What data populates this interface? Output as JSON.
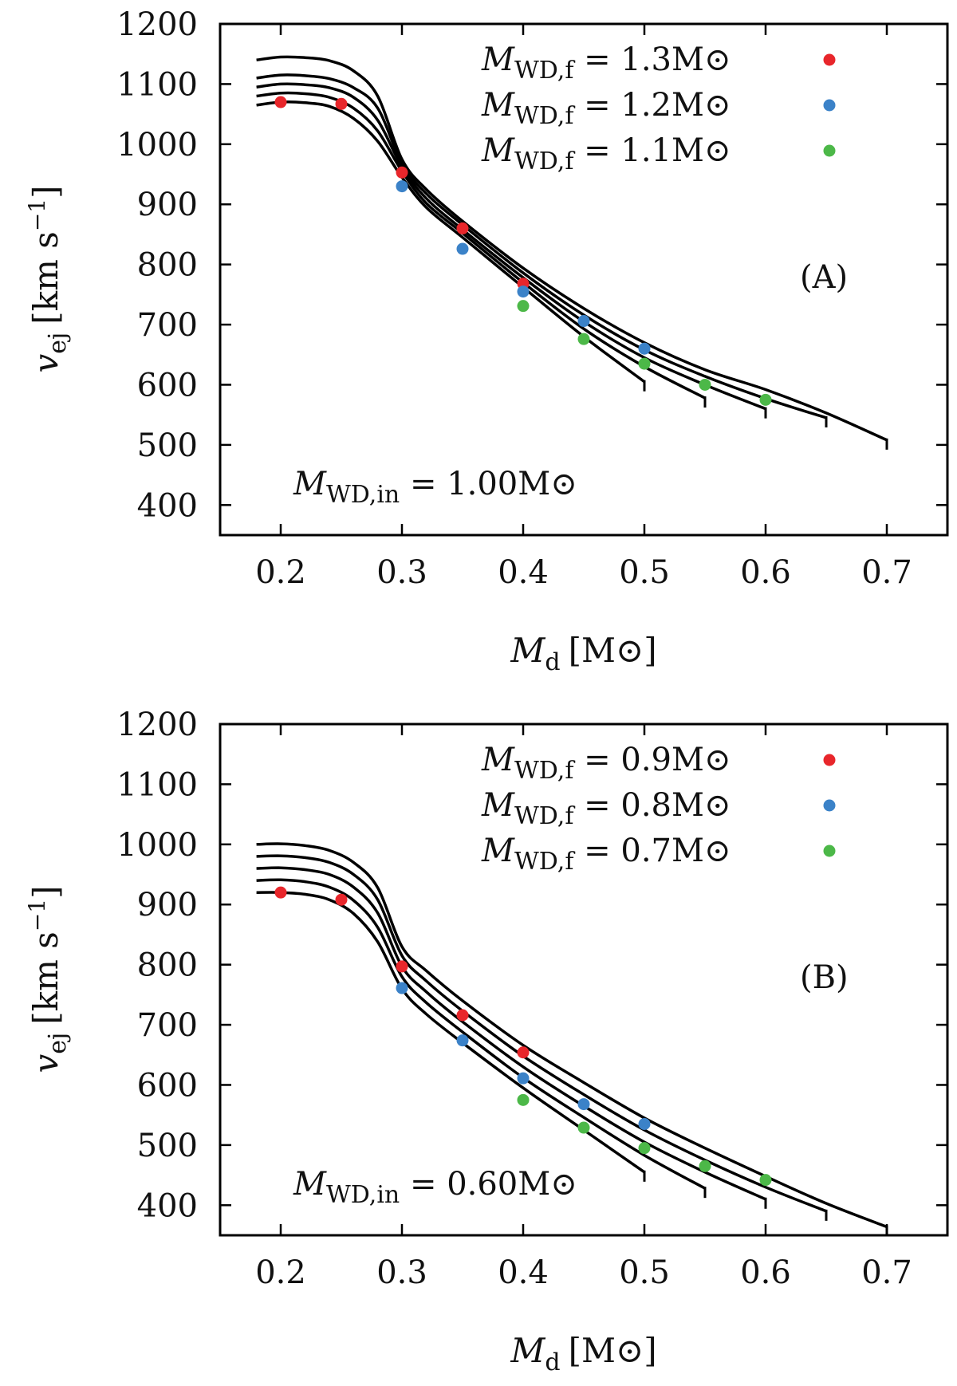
{
  "chart_data": [
    {
      "type": "line",
      "panel_label": "(A)",
      "xlabel_sym": "M",
      "xlabel_sub": "d",
      "xlabel_unit": "[M⊙]",
      "ylabel_sym": "v",
      "ylabel_sub": "ej",
      "ylabel_unit": "[km s",
      "ylabel_exp": "−1",
      "ylabel_close": "]",
      "xlim": [
        0.15,
        0.75
      ],
      "ylim": [
        350,
        1200
      ],
      "xticks": [
        0.2,
        0.3,
        0.4,
        0.5,
        0.6,
        0.7
      ],
      "xtick_labels": [
        "0.2",
        "0.3",
        "0.4",
        "0.5",
        "0.6",
        "0.7"
      ],
      "yticks": [
        400,
        500,
        600,
        700,
        800,
        900,
        1000,
        1100,
        1200
      ],
      "ytick_labels": [
        "400",
        "500",
        "600",
        "700",
        "800",
        "900",
        "1000",
        "1100",
        "1200"
      ],
      "grid": false,
      "legend_position": "top-right",
      "annotation": {
        "sym": "M",
        "sub": "WD,in",
        "text": " = 1.00M⊙"
      },
      "legend": [
        {
          "sym": "M",
          "sub": "WD,f",
          "text": " = 1.3M⊙",
          "color": "#e8262b"
        },
        {
          "sym": "M",
          "sub": "WD,f",
          "text": " = 1.2M⊙",
          "color": "#3b82c8"
        },
        {
          "sym": "M",
          "sub": "WD,f",
          "text": " = 1.1M⊙",
          "color": "#4cb848"
        }
      ],
      "lines": [
        {
          "x": [
            0.18,
            0.2,
            0.22,
            0.24,
            0.26,
            0.28,
            0.3,
            0.32,
            0.35,
            0.4,
            0.45,
            0.5
          ],
          "y": [
            1065,
            1070,
            1069,
            1063,
            1043,
            1005,
            945,
            895,
            845,
            762,
            680,
            605
          ]
        },
        {
          "x": [
            0.18,
            0.2,
            0.22,
            0.24,
            0.26,
            0.28,
            0.3,
            0.32,
            0.35,
            0.4,
            0.45,
            0.5,
            0.55
          ],
          "y": [
            1080,
            1085,
            1084,
            1078,
            1060,
            1022,
            955,
            902,
            852,
            770,
            693,
            630,
            578
          ]
        },
        {
          "x": [
            0.18,
            0.2,
            0.22,
            0.24,
            0.26,
            0.28,
            0.3,
            0.32,
            0.35,
            0.4,
            0.45,
            0.5,
            0.55,
            0.6
          ],
          "y": [
            1095,
            1100,
            1099,
            1094,
            1078,
            1040,
            962,
            910,
            858,
            778,
            705,
            645,
            600,
            560
          ]
        },
        {
          "x": [
            0.18,
            0.2,
            0.22,
            0.24,
            0.26,
            0.28,
            0.3,
            0.32,
            0.35,
            0.4,
            0.45,
            0.5,
            0.55,
            0.6,
            0.65
          ],
          "y": [
            1110,
            1115,
            1114,
            1109,
            1094,
            1060,
            968,
            918,
            866,
            786,
            716,
            658,
            614,
            577,
            545
          ]
        },
        {
          "x": [
            0.18,
            0.2,
            0.22,
            0.24,
            0.26,
            0.28,
            0.3,
            0.32,
            0.35,
            0.4,
            0.45,
            0.5,
            0.55,
            0.6,
            0.65,
            0.7
          ],
          "y": [
            1140,
            1145,
            1144,
            1139,
            1122,
            1080,
            975,
            925,
            872,
            794,
            727,
            670,
            625,
            592,
            553,
            508
          ]
        }
      ],
      "series": [
        {
          "color": "#e8262b",
          "x": [
            0.2,
            0.25,
            0.3,
            0.35,
            0.4
          ],
          "y": [
            1070,
            1067,
            953,
            860,
            768
          ]
        },
        {
          "color": "#3b82c8",
          "x": [
            0.3,
            0.35,
            0.4,
            0.45,
            0.5
          ],
          "y": [
            930,
            826,
            755,
            706,
            660
          ]
        },
        {
          "color": "#4cb848",
          "x": [
            0.4,
            0.45,
            0.5,
            0.55,
            0.6
          ],
          "y": [
            731,
            676,
            635,
            600,
            575
          ]
        }
      ]
    },
    {
      "type": "line",
      "panel_label": "(B)",
      "xlabel_sym": "M",
      "xlabel_sub": "d",
      "xlabel_unit": "[M⊙]",
      "ylabel_sym": "v",
      "ylabel_sub": "ej",
      "ylabel_unit": "[km s",
      "ylabel_exp": "−1",
      "ylabel_close": "]",
      "xlim": [
        0.15,
        0.75
      ],
      "ylim": [
        350,
        1200
      ],
      "xticks": [
        0.2,
        0.3,
        0.4,
        0.5,
        0.6,
        0.7
      ],
      "xtick_labels": [
        "0.2",
        "0.3",
        "0.4",
        "0.5",
        "0.6",
        "0.7"
      ],
      "yticks": [
        400,
        500,
        600,
        700,
        800,
        900,
        1000,
        1100,
        1200
      ],
      "ytick_labels": [
        "400",
        "500",
        "600",
        "700",
        "800",
        "900",
        "1000",
        "1100",
        "1200"
      ],
      "grid": false,
      "legend_position": "top-right",
      "annotation": {
        "sym": "M",
        "sub": "WD,in",
        "text": " = 0.60M⊙"
      },
      "legend": [
        {
          "sym": "M",
          "sub": "WD,f",
          "text": " = 0.9M⊙",
          "color": "#e8262b"
        },
        {
          "sym": "M",
          "sub": "WD,f",
          "text": " = 0.8M⊙",
          "color": "#3b82c8"
        },
        {
          "sym": "M",
          "sub": "WD,f",
          "text": " = 0.7M⊙",
          "color": "#4cb848"
        }
      ],
      "lines": [
        {
          "x": [
            0.18,
            0.2,
            0.22,
            0.24,
            0.26,
            0.28,
            0.3,
            0.32,
            0.35,
            0.4,
            0.45,
            0.5
          ],
          "y": [
            920,
            920,
            917,
            908,
            885,
            838,
            760,
            718,
            670,
            595,
            525,
            455
          ]
        },
        {
          "x": [
            0.18,
            0.2,
            0.22,
            0.24,
            0.26,
            0.28,
            0.3,
            0.32,
            0.35,
            0.4,
            0.45,
            0.5,
            0.55
          ],
          "y": [
            940,
            941,
            938,
            929,
            907,
            862,
            780,
            737,
            688,
            612,
            546,
            483,
            428
          ]
        },
        {
          "x": [
            0.18,
            0.2,
            0.22,
            0.24,
            0.26,
            0.28,
            0.3,
            0.32,
            0.35,
            0.4,
            0.45,
            0.5,
            0.55,
            0.6
          ],
          "y": [
            960,
            961,
            958,
            950,
            929,
            886,
            797,
            755,
            705,
            630,
            565,
            505,
            455,
            410
          ]
        },
        {
          "x": [
            0.18,
            0.2,
            0.22,
            0.24,
            0.26,
            0.28,
            0.3,
            0.32,
            0.35,
            0.4,
            0.45,
            0.5,
            0.55,
            0.6,
            0.65
          ],
          "y": [
            980,
            981,
            978,
            970,
            950,
            908,
            815,
            773,
            723,
            648,
            584,
            525,
            475,
            430,
            390
          ]
        },
        {
          "x": [
            0.18,
            0.2,
            0.22,
            0.24,
            0.26,
            0.28,
            0.3,
            0.32,
            0.35,
            0.4,
            0.45,
            0.5,
            0.55,
            0.6,
            0.65,
            0.7
          ],
          "y": [
            1000,
            1001,
            998,
            990,
            970,
            928,
            830,
            790,
            740,
            666,
            604,
            545,
            495,
            448,
            403,
            364
          ]
        }
      ],
      "series": [
        {
          "color": "#e8262b",
          "x": [
            0.2,
            0.25,
            0.3,
            0.35,
            0.4
          ],
          "y": [
            920,
            908,
            797,
            716,
            654
          ]
        },
        {
          "color": "#3b82c8",
          "x": [
            0.3,
            0.35,
            0.4,
            0.45,
            0.5
          ],
          "y": [
            761,
            674,
            611,
            568,
            535
          ]
        },
        {
          "color": "#4cb848",
          "x": [
            0.4,
            0.45,
            0.5,
            0.55,
            0.6
          ],
          "y": [
            575,
            529,
            495,
            465,
            442
          ]
        }
      ]
    }
  ]
}
